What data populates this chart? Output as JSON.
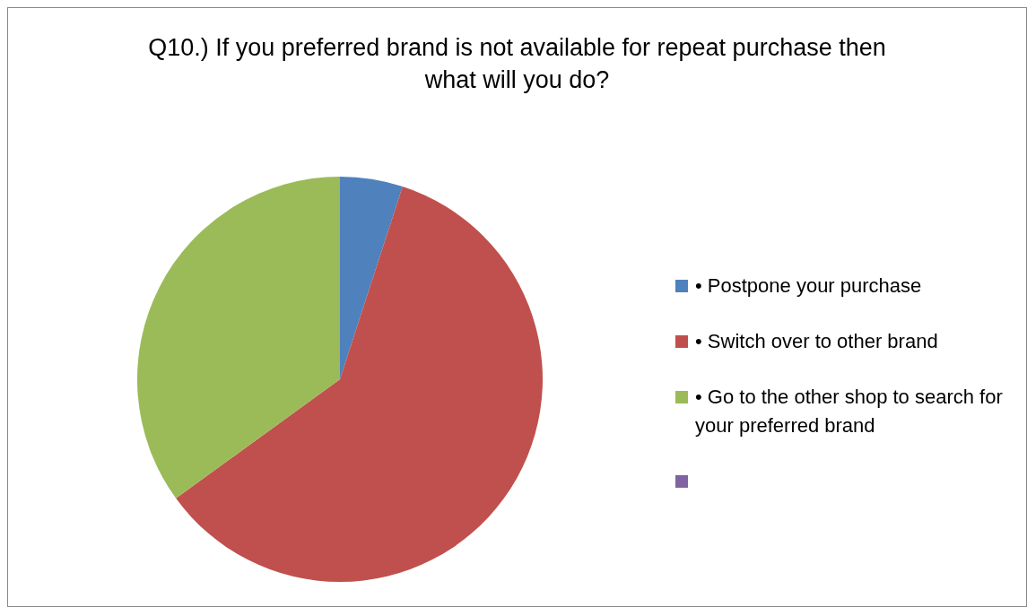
{
  "chart_data": {
    "type": "pie",
    "title": "Q10.) If you preferred brand is not available for repeat purchase then what will you do?",
    "categories": [
      "• Postpone your purchase",
      "• Switch over to other brand",
      "• Go to the other shop to search for your preferred brand",
      null
    ],
    "values": [
      5,
      60,
      35,
      0
    ],
    "colors": [
      "#4f81bd",
      "#c0504d",
      "#9bbb59",
      "#8064a2"
    ],
    "legend": "right"
  }
}
